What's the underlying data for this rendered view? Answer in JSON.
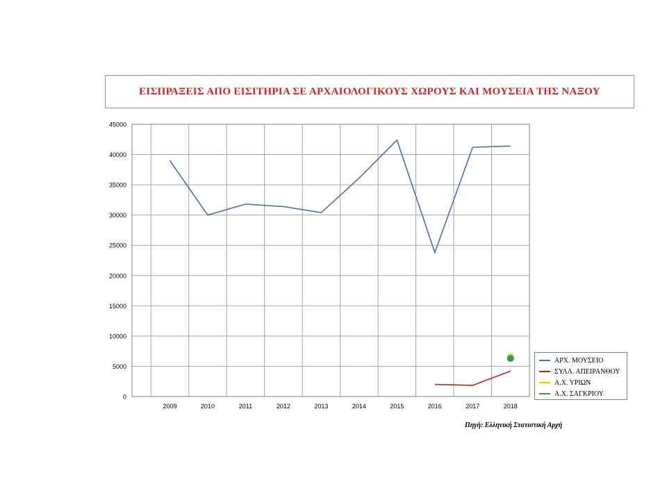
{
  "title": "ΕΙΣΠΡΑΞΕΙΣ ΑΠΟ ΕΙΣΙΤΗΡΙΑ ΣΕ ΑΡΧΑΙΟΛΟΓΙΚΟΥΣ ΧΩΡΟΥΣ ΚΑΙ ΜΟΥΣΕΙΑ ΤΗΣ ΝΑΞΟΥ",
  "source": "Πηγή: Ελληνική Στατιστική Αρχή",
  "colors": {
    "title": "#d42020",
    "grid": "#a6a6a6",
    "axis": "#808080"
  },
  "chart_data": {
    "type": "line",
    "title": "ΕΙΣΠΡΑΞΕΙΣ ΑΠΟ ΕΙΣΙΤΗΡΙΑ ΣΕ ΑΡΧΑΙΟΛΟΓΙΚΟΥΣ ΧΩΡΟΥΣ ΚΑΙ ΜΟΥΣΕΙΑ ΤΗΣ ΝΑΞΟΥ",
    "categories": [
      "2009",
      "2010",
      "2011",
      "2012",
      "2013",
      "2014",
      "2015",
      "2016",
      "2017",
      "2018"
    ],
    "y_ticks": [
      0,
      5000,
      10000,
      15000,
      20000,
      25000,
      30000,
      35000,
      40000,
      45000
    ],
    "ylim": [
      0,
      45000
    ],
    "grid": true,
    "legend_position": "right-bottom",
    "series": [
      {
        "name": "ΑΡΧ. ΜΟΥΣΕΙΟ",
        "color": "#4a6fad",
        "values": [
          39000,
          30000,
          31800,
          31400,
          30400,
          36100,
          42400,
          23800,
          41200,
          41400
        ]
      },
      {
        "name": "ΣΥΛΛ. ΑΠΕΙΡΑΝΘΟΥ",
        "color": "#c0221d",
        "values": [
          null,
          null,
          null,
          null,
          null,
          null,
          null,
          2000,
          1850,
          4200
        ]
      },
      {
        "name": "Α.Χ. ΥΡΙΩΝ",
        "color": "#f2c500",
        "values": [
          null,
          null,
          null,
          null,
          null,
          null,
          null,
          null,
          null,
          6700
        ]
      },
      {
        "name": "Α.Χ. ΣΑΓΚΡΙΟΥ",
        "color": "#2e9e4e",
        "values": [
          null,
          null,
          null,
          null,
          null,
          null,
          null,
          null,
          null,
          6300
        ]
      }
    ]
  }
}
